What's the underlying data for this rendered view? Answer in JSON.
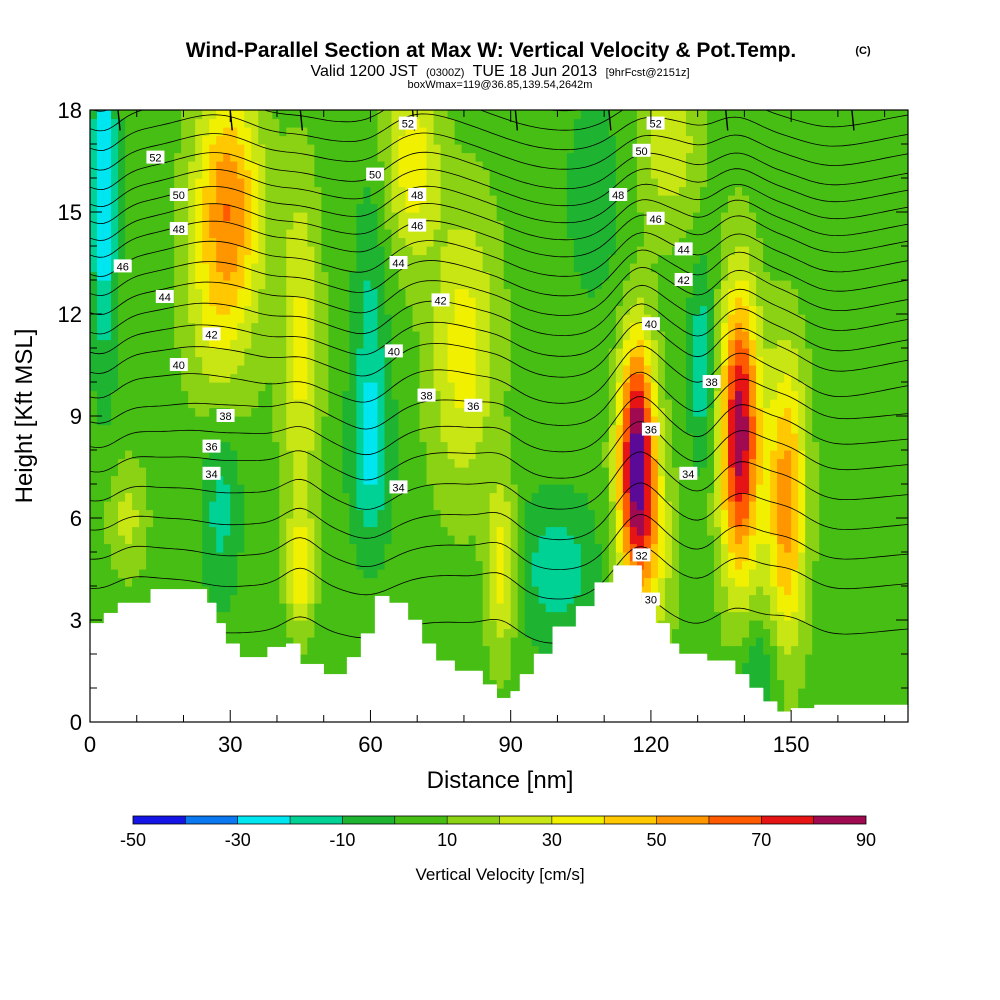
{
  "title": {
    "main": "Wind-Parallel Section at Max W: Vertical Velocity & Pot.Temp.",
    "mark": "(C)",
    "sub_prefix": "Valid 1200 JST",
    "sub_utc": "(0300Z)",
    "sub_date": "TUE 18 Jun 2013",
    "sub_fcst": "[9hrFcst@2151z]",
    "sub3": "boxWmax=119@36.85,139.54,2642m"
  },
  "chart_data": {
    "type": "heatmap",
    "xlabel": "Distance [nm]",
    "ylabel": "Height [Kft MSL]",
    "xlim": [
      0,
      175
    ],
    "ylim": [
      0,
      18
    ],
    "x_ticks": [
      0,
      30,
      60,
      90,
      120,
      150
    ],
    "y_ticks": [
      0,
      3,
      6,
      9,
      12,
      15,
      18
    ],
    "x_tick_labels": [
      "0",
      "30",
      "60",
      "90",
      "120",
      "150"
    ],
    "y_tick_labels": [
      "0",
      "3",
      "6",
      "9",
      "12",
      "15",
      "18"
    ],
    "colorbar": {
      "label": "Vertical Velocity [cm/s]",
      "levels": [
        -50,
        -40,
        -30,
        -20,
        -10,
        0,
        10,
        20,
        30,
        40,
        50,
        60,
        70,
        80,
        90
      ],
      "tick_labels": [
        "-50",
        "-30",
        "-10",
        "10",
        "30",
        "50",
        "70",
        "90"
      ],
      "colors": [
        "#1414e6",
        "#0a78f0",
        "#00e6f0",
        "#00d296",
        "#1eb432",
        "#46be14",
        "#8cd214",
        "#c8e614",
        "#f0f000",
        "#ffc800",
        "#ff9600",
        "#ff5a00",
        "#e61414",
        "#a00a50",
        "#5a0a96"
      ]
    },
    "background_w_cms": 5,
    "updrafts": [
      {
        "x": 30,
        "y": 15.5,
        "peak": 48,
        "sx": 5,
        "sy": 2.4,
        "tilt": -0.18
      },
      {
        "x": 27,
        "y": 12.0,
        "peak": 22,
        "sx": 5,
        "sy": 2.5,
        "tilt": -0.3
      },
      {
        "x": 45,
        "y": 11.0,
        "peak": 28,
        "sx": 3,
        "sy": 3.5,
        "tilt": 0
      },
      {
        "x": 45,
        "y": 4.5,
        "peak": 32,
        "sx": 2,
        "sy": 1.2,
        "tilt": 0
      },
      {
        "x": 69,
        "y": 16.5,
        "peak": 32,
        "sx": 4,
        "sy": 2.0,
        "tilt": 0
      },
      {
        "x": 80,
        "y": 11.0,
        "peak": 30,
        "sx": 5,
        "sy": 3.0,
        "tilt": 0.15
      },
      {
        "x": 88,
        "y": 4.5,
        "peak": 32,
        "sx": 2.2,
        "sy": 1.8,
        "tilt": 0
      },
      {
        "x": 124,
        "y": 17.0,
        "peak": 22,
        "sx": 5,
        "sy": 1.8,
        "tilt": 0
      },
      {
        "x": 117,
        "y": 8.0,
        "peak": 85,
        "sx": 2.8,
        "sy": 2.4,
        "tilt": 0
      },
      {
        "x": 119,
        "y": 5.0,
        "peak": 30,
        "sx": 4,
        "sy": 2.0,
        "tilt": 0
      },
      {
        "x": 139,
        "y": 8.5,
        "peak": 82,
        "sx": 3,
        "sy": 3.0,
        "tilt": 0
      },
      {
        "x": 149,
        "y": 6.5,
        "peak": 52,
        "sx": 3,
        "sy": 3.0,
        "tilt": 0
      },
      {
        "x": 8,
        "y": 6.0,
        "peak": 18,
        "sx": 3,
        "sy": 1.2,
        "tilt": 0
      }
    ],
    "downdrafts": [
      {
        "x": 3,
        "y": 15.5,
        "peak": -35,
        "sx": 2,
        "sy": 3.5,
        "tilt": 0
      },
      {
        "x": 28,
        "y": 6.5,
        "peak": -20,
        "sx": 3,
        "sy": 2.0,
        "tilt": 0
      },
      {
        "x": 60,
        "y": 8.0,
        "peak": -28,
        "sx": 3,
        "sy": 2.0,
        "tilt": 0
      },
      {
        "x": 60,
        "y": 12.5,
        "peak": -15,
        "sx": 2.5,
        "sy": 2.5,
        "tilt": 0
      },
      {
        "x": 100,
        "y": 4.5,
        "peak": -22,
        "sx": 6,
        "sy": 1.5,
        "tilt": 0
      },
      {
        "x": 131,
        "y": 10.5,
        "peak": -25,
        "sx": 2,
        "sy": 2.0,
        "tilt": 0
      },
      {
        "x": 143,
        "y": 1.5,
        "peak": -18,
        "sx": 3,
        "sy": 1.0,
        "tilt": 0
      },
      {
        "x": 108,
        "y": 15.5,
        "peak": -10,
        "sx": 5,
        "sy": 2.5,
        "tilt": 0
      }
    ],
    "terrain": {
      "x": [
        0,
        3,
        6,
        9,
        13,
        19,
        25,
        27,
        29,
        32,
        35,
        38,
        42,
        45,
        50,
        55,
        58,
        61,
        64,
        68,
        71,
        74,
        78,
        84,
        87,
        90,
        92,
        95,
        99,
        104,
        108,
        112,
        115,
        118,
        121,
        124,
        126,
        132,
        138,
        141,
        144,
        147,
        150,
        155,
        160,
        165,
        170,
        175
      ],
      "y": [
        2.9,
        3.2,
        3.5,
        3.5,
        3.9,
        3.9,
        3.5,
        2.9,
        2.3,
        1.9,
        1.9,
        2.2,
        2.3,
        1.7,
        1.4,
        1.9,
        2.6,
        3.7,
        3.5,
        3.0,
        2.3,
        1.8,
        1.5,
        1.1,
        0.7,
        0.9,
        1.4,
        2.0,
        2.8,
        3.4,
        4.1,
        4.6,
        4.6,
        3.5,
        2.9,
        2.3,
        2.0,
        1.8,
        1.4,
        1.0,
        0.6,
        0.3,
        0.4,
        0.5,
        0.5,
        0.5,
        0.5,
        0.5
      ]
    },
    "theta_levels": [
      30,
      31,
      32,
      33,
      34,
      35,
      36,
      37,
      38,
      39,
      40,
      41,
      42,
      43,
      44,
      45,
      46,
      47,
      48,
      49,
      50,
      51,
      52,
      53
    ],
    "theta_profile": {
      "height_kft": [
        0,
        2,
        4,
        6,
        7.5,
        9,
        10.5,
        12,
        14,
        16,
        18
      ],
      "theta_c": [
        28,
        29.5,
        31,
        33.3,
        35,
        37,
        39,
        41.5,
        45,
        49,
        52.5
      ]
    },
    "theta_labels": [
      {
        "x": 14,
        "y": 16.6,
        "text": "52"
      },
      {
        "x": 19,
        "y": 15.5,
        "text": "50"
      },
      {
        "x": 19,
        "y": 14.5,
        "text": "48"
      },
      {
        "x": 7,
        "y": 13.4,
        "text": "46"
      },
      {
        "x": 16,
        "y": 12.5,
        "text": "44"
      },
      {
        "x": 26,
        "y": 11.4,
        "text": "42"
      },
      {
        "x": 19,
        "y": 10.5,
        "text": "40"
      },
      {
        "x": 29,
        "y": 9.0,
        "text": "38"
      },
      {
        "x": 26,
        "y": 8.1,
        "text": "36"
      },
      {
        "x": 26,
        "y": 7.3,
        "text": "34"
      },
      {
        "x": 68,
        "y": 17.6,
        "text": "52"
      },
      {
        "x": 61,
        "y": 16.1,
        "text": "50"
      },
      {
        "x": 70,
        "y": 15.5,
        "text": "48"
      },
      {
        "x": 70,
        "y": 14.6,
        "text": "46"
      },
      {
        "x": 66,
        "y": 13.5,
        "text": "44"
      },
      {
        "x": 75,
        "y": 12.4,
        "text": "42"
      },
      {
        "x": 65,
        "y": 10.9,
        "text": "40"
      },
      {
        "x": 72,
        "y": 9.6,
        "text": "38"
      },
      {
        "x": 82,
        "y": 9.3,
        "text": "36"
      },
      {
        "x": 66,
        "y": 6.9,
        "text": "34"
      },
      {
        "x": 121,
        "y": 17.6,
        "text": "52"
      },
      {
        "x": 118,
        "y": 16.8,
        "text": "50"
      },
      {
        "x": 113,
        "y": 15.5,
        "text": "48"
      },
      {
        "x": 121,
        "y": 14.8,
        "text": "46"
      },
      {
        "x": 127,
        "y": 13.9,
        "text": "44"
      },
      {
        "x": 127,
        "y": 13.0,
        "text": "42"
      },
      {
        "x": 120,
        "y": 11.7,
        "text": "40"
      },
      {
        "x": 133,
        "y": 10.0,
        "text": "38"
      },
      {
        "x": 120,
        "y": 8.6,
        "text": "36"
      },
      {
        "x": 128,
        "y": 7.3,
        "text": "34"
      },
      {
        "x": 118,
        "y": 4.9,
        "text": "32"
      },
      {
        "x": 120,
        "y": 3.6,
        "text": "30"
      }
    ],
    "wind_barbs_top_x": [
      6,
      30,
      45,
      69,
      91,
      111,
      136,
      163
    ]
  }
}
